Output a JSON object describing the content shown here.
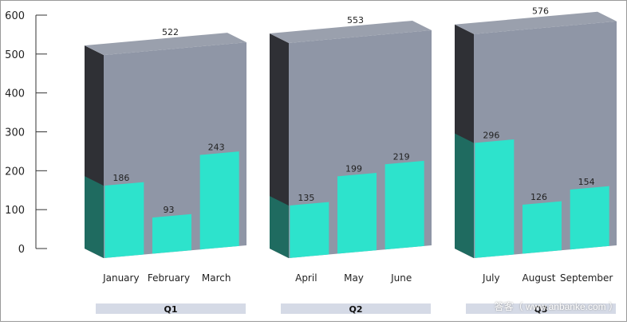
{
  "chart_data": {
    "type": "bar",
    "subtype": "3d-grouped-stacked",
    "title": "",
    "xlabel": "",
    "ylabel": "",
    "ylim": [
      0,
      600
    ],
    "yticks": [
      0,
      100,
      200,
      300,
      400,
      500,
      600
    ],
    "grid": false,
    "legend": "none",
    "colors": {
      "bar_front": "#2de3cc",
      "bar_side": "#1f6b60",
      "group_front": "#8f96a6",
      "group_side": "#2f3035",
      "group_top": "#9aa0ad",
      "quarter_band": "#d5dae6"
    },
    "groups": [
      {
        "label": "Q1",
        "total": 522,
        "total_label": "522",
        "bars": [
          {
            "category": "January",
            "value": 186,
            "label": "186"
          },
          {
            "category": "February",
            "value": 93,
            "label": "93"
          },
          {
            "category": "March",
            "value": 243,
            "label": "243"
          }
        ]
      },
      {
        "label": "Q2",
        "total": 553,
        "total_label": "553",
        "bars": [
          {
            "category": "April",
            "value": 135,
            "label": "135"
          },
          {
            "category": "May",
            "value": 199,
            "label": "199"
          },
          {
            "category": "June",
            "value": 219,
            "label": "219"
          }
        ]
      },
      {
        "label": "Q3",
        "total": 576,
        "total_label": "576",
        "bars": [
          {
            "category": "July",
            "value": 296,
            "label": "296"
          },
          {
            "category": "August",
            "value": 126,
            "label": "126"
          },
          {
            "category": "September",
            "value": 154,
            "label": "154"
          }
        ]
      }
    ]
  },
  "watermark": "答客（ www.anbanke.com ）"
}
